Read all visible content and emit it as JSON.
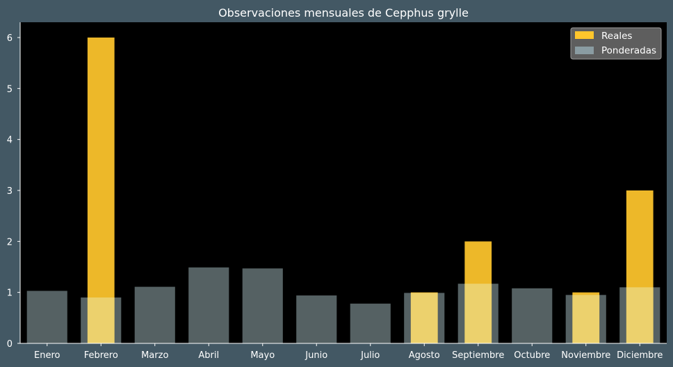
{
  "chart_data": {
    "type": "bar",
    "title": "Observaciones mensuales de Cepphus grylle",
    "xlabel": "",
    "ylabel": "",
    "categories": [
      "Enero",
      "Febrero",
      "Marzo",
      "Abril",
      "Mayo",
      "Junio",
      "Julio",
      "Agosto",
      "Septiembre",
      "Octubre",
      "Noviembre",
      "Diciembre"
    ],
    "series": [
      {
        "name": "Reales",
        "color": "#ffc62c",
        "values": [
          0,
          6,
          0,
          0,
          0,
          0,
          0,
          1,
          2,
          0,
          1,
          3
        ]
      },
      {
        "name": "Ponderadas",
        "color": "#9ab0b4",
        "opacity": 0.55,
        "values": [
          1.03,
          0.9,
          1.11,
          1.49,
          1.47,
          0.94,
          0.78,
          0.99,
          1.17,
          1.08,
          0.95,
          1.1
        ]
      }
    ],
    "ylim": [
      0,
      6.3
    ],
    "yticks": [
      0,
      1,
      2,
      3,
      4,
      5,
      6
    ],
    "grid": false,
    "legend": "top-right",
    "colors": {
      "figure_bg": "#435864",
      "plot_bg": "#000000",
      "text": "#ffffff"
    }
  }
}
